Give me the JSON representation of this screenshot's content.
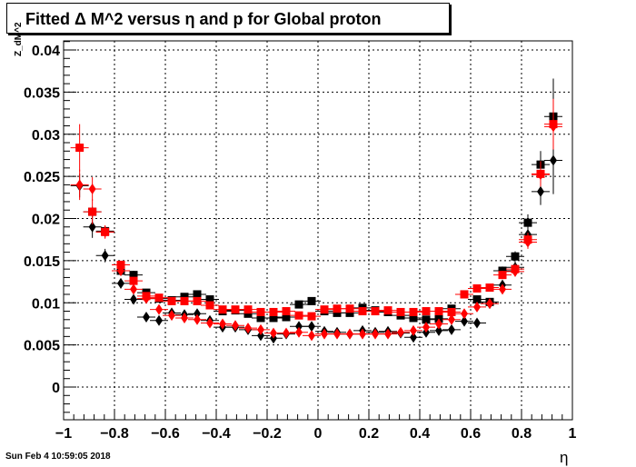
{
  "title": "Fitted Δ M^2 versus η and p for Global proton",
  "timestamp": "Sun Feb  4 10:59:05 2018",
  "chart_data": {
    "type": "scatter",
    "title": "Fitted Δ M^2 versus η and p for Global proton",
    "xlabel": "η",
    "ylabel": "Z_dM^2",
    "xlim": [
      -1,
      1
    ],
    "ylim": [
      -0.0038,
      0.041
    ],
    "x_ticks": [
      -1,
      -0.8,
      -0.6,
      -0.4,
      -0.2,
      0,
      0.2,
      0.4,
      0.6,
      0.8,
      1
    ],
    "x_tick_labels": [
      "−1",
      "−0.8",
      "−0.6",
      "−0.4",
      "−0.2",
      "0",
      "0.2",
      "0.4",
      "0.6",
      "0.8",
      "1"
    ],
    "y_ticks": [
      0,
      0.005,
      0.01,
      0.015,
      0.02,
      0.025,
      0.03,
      0.035,
      0.04
    ],
    "y_tick_labels": [
      "0",
      "0.005",
      "0.01",
      "0.015",
      "0.02",
      "0.025",
      "0.03",
      "0.035",
      "0.04"
    ],
    "grid": true,
    "series": [
      {
        "marker": "square",
        "color": "#000000",
        "points": [
          [
            -0.887,
            0.0208
          ],
          [
            -0.837,
            0.0185
          ],
          [
            -0.775,
            0.0138
          ],
          [
            -0.725,
            0.0133
          ],
          [
            -0.675,
            0.0112
          ],
          [
            -0.625,
            0.0105
          ],
          [
            -0.575,
            0.0103
          ],
          [
            -0.525,
            0.0107
          ],
          [
            -0.475,
            0.011
          ],
          [
            -0.425,
            0.0104
          ],
          [
            -0.375,
            0.009
          ],
          [
            -0.325,
            0.0091
          ],
          [
            -0.275,
            0.0087
          ],
          [
            -0.225,
            0.0082
          ],
          [
            -0.175,
            0.0082
          ],
          [
            -0.125,
            0.0083
          ],
          [
            -0.075,
            0.0098
          ],
          [
            -0.025,
            0.0102
          ],
          [
            0.025,
            0.009
          ],
          [
            0.075,
            0.0088
          ],
          [
            0.125,
            0.0088
          ],
          [
            0.175,
            0.0094
          ],
          [
            0.225,
            0.0091
          ],
          [
            0.275,
            0.0089
          ],
          [
            0.325,
            0.0085
          ],
          [
            0.375,
            0.0082
          ],
          [
            0.425,
            0.008
          ],
          [
            0.475,
            0.0081
          ],
          [
            0.525,
            0.0093
          ],
          [
            0.575,
            0.011
          ],
          [
            0.625,
            0.0104
          ],
          [
            0.675,
            0.0101
          ],
          [
            0.725,
            0.0138
          ],
          [
            0.775,
            0.0155
          ],
          [
            0.825,
            0.0195
          ],
          [
            0.875,
            0.0264
          ],
          [
            0.925,
            0.0321
          ]
        ],
        "errors": [
          0.0006,
          0.0006,
          0.0006,
          0.0005,
          0.0004,
          0.0004,
          0.0004,
          0.0004,
          0.0004,
          0.0004,
          0.0004,
          0.0004,
          0.0004,
          0.0004,
          0.0004,
          0.0004,
          0.0004,
          0.0004,
          0.0004,
          0.0004,
          0.0004,
          0.0004,
          0.0004,
          0.0004,
          0.0004,
          0.0004,
          0.0004,
          0.0004,
          0.0004,
          0.0004,
          0.0004,
          0.0004,
          0.0005,
          0.0006,
          0.001,
          0.0016,
          0.0045
        ]
      },
      {
        "marker": "diamond",
        "color": "#000000",
        "points": [
          [
            -0.937,
            0.0239
          ],
          [
            -0.887,
            0.019
          ],
          [
            -0.837,
            0.0156
          ],
          [
            -0.775,
            0.0123
          ],
          [
            -0.725,
            0.0104
          ],
          [
            -0.675,
            0.0083
          ],
          [
            -0.625,
            0.0079
          ],
          [
            -0.575,
            0.0088
          ],
          [
            -0.525,
            0.0086
          ],
          [
            -0.475,
            0.0087
          ],
          [
            -0.425,
            0.0079
          ],
          [
            -0.375,
            0.0071
          ],
          [
            -0.325,
            0.0071
          ],
          [
            -0.275,
            0.0068
          ],
          [
            -0.225,
            0.0061
          ],
          [
            -0.175,
            0.0058
          ],
          [
            -0.125,
            0.0063
          ],
          [
            -0.075,
            0.0072
          ],
          [
            -0.025,
            0.0072
          ],
          [
            0.025,
            0.0066
          ],
          [
            0.075,
            0.0065
          ],
          [
            0.125,
            0.0063
          ],
          [
            0.175,
            0.0067
          ],
          [
            0.225,
            0.0065
          ],
          [
            0.275,
            0.0066
          ],
          [
            0.325,
            0.0064
          ],
          [
            0.375,
            0.0059
          ],
          [
            0.425,
            0.0065
          ],
          [
            0.475,
            0.0067
          ],
          [
            0.525,
            0.0068
          ],
          [
            0.575,
            0.0078
          ],
          [
            0.625,
            0.0076
          ],
          [
            0.675,
            0.0099
          ],
          [
            0.725,
            0.0121
          ],
          [
            0.775,
            0.0142
          ],
          [
            0.825,
            0.0181
          ],
          [
            0.875,
            0.0232
          ],
          [
            0.925,
            0.0269
          ]
        ],
        "errors": [
          0.0014,
          0.0013,
          0.0008,
          0.0006,
          0.0005,
          0.0005,
          0.0005,
          0.0005,
          0.0005,
          0.0005,
          0.0005,
          0.0005,
          0.0005,
          0.0005,
          0.0005,
          0.0005,
          0.0005,
          0.0005,
          0.0005,
          0.0005,
          0.0005,
          0.0005,
          0.0005,
          0.0005,
          0.0005,
          0.0005,
          0.0005,
          0.0005,
          0.0005,
          0.0005,
          0.0005,
          0.0005,
          0.0005,
          0.0006,
          0.0007,
          0.001,
          0.0016,
          0.004
        ]
      },
      {
        "marker": "square",
        "color": "#ff0000",
        "points": [
          [
            -0.937,
            0.0284
          ],
          [
            -0.887,
            0.0208
          ],
          [
            -0.837,
            0.0184
          ],
          [
            -0.775,
            0.0145
          ],
          [
            -0.725,
            0.0126
          ],
          [
            -0.675,
            0.0108
          ],
          [
            -0.625,
            0.0106
          ],
          [
            -0.575,
            0.0102
          ],
          [
            -0.525,
            0.0102
          ],
          [
            -0.475,
            0.0102
          ],
          [
            -0.425,
            0.0097
          ],
          [
            -0.375,
            0.0092
          ],
          [
            -0.325,
            0.0092
          ],
          [
            -0.275,
            0.0092
          ],
          [
            -0.225,
            0.0089
          ],
          [
            -0.175,
            0.0089
          ],
          [
            -0.125,
            0.009
          ],
          [
            -0.075,
            0.0085
          ],
          [
            -0.025,
            0.0084
          ],
          [
            0.025,
            0.0092
          ],
          [
            0.075,
            0.0093
          ],
          [
            0.125,
            0.0093
          ],
          [
            0.175,
            0.009
          ],
          [
            0.225,
            0.009
          ],
          [
            0.275,
            0.0091
          ],
          [
            0.325,
            0.0089
          ],
          [
            0.375,
            0.0089
          ],
          [
            0.425,
            0.009
          ],
          [
            0.475,
            0.009
          ],
          [
            0.525,
            0.0089
          ],
          [
            0.575,
            0.011
          ],
          [
            0.625,
            0.0117
          ],
          [
            0.675,
            0.0118
          ],
          [
            0.725,
            0.0133
          ],
          [
            0.775,
            0.014
          ],
          [
            0.825,
            0.0175
          ],
          [
            0.875,
            0.0253
          ],
          [
            0.925,
            0.0312
          ]
        ],
        "errors": [
          0.0028,
          0.0015,
          0.0007,
          0.0005,
          0.0004,
          0.0004,
          0.0004,
          0.0004,
          0.0004,
          0.0004,
          0.0004,
          0.0004,
          0.0004,
          0.0004,
          0.0004,
          0.0004,
          0.0004,
          0.0004,
          0.0004,
          0.0004,
          0.0004,
          0.0004,
          0.0004,
          0.0004,
          0.0004,
          0.0004,
          0.0004,
          0.0004,
          0.0004,
          0.0004,
          0.0004,
          0.0004,
          0.0004,
          0.0005,
          0.0006,
          0.0008,
          0.0015,
          0.003
        ]
      },
      {
        "marker": "diamond",
        "color": "#ff0000",
        "points": [
          [
            -0.937,
            0.024
          ],
          [
            -0.887,
            0.0235
          ],
          [
            -0.837,
            0.0184
          ],
          [
            -0.775,
            0.0138
          ],
          [
            -0.725,
            0.0116
          ],
          [
            -0.675,
            0.0105
          ],
          [
            -0.625,
            0.0092
          ],
          [
            -0.575,
            0.0085
          ],
          [
            -0.525,
            0.0082
          ],
          [
            -0.475,
            0.008
          ],
          [
            -0.425,
            0.0076
          ],
          [
            -0.375,
            0.0075
          ],
          [
            -0.325,
            0.0073
          ],
          [
            -0.275,
            0.007
          ],
          [
            -0.225,
            0.0068
          ],
          [
            -0.175,
            0.0064
          ],
          [
            -0.125,
            0.0064
          ],
          [
            -0.075,
            0.0065
          ],
          [
            -0.025,
            0.0061
          ],
          [
            0.025,
            0.0063
          ],
          [
            0.075,
            0.0063
          ],
          [
            0.125,
            0.0063
          ],
          [
            0.175,
            0.0063
          ],
          [
            0.225,
            0.0063
          ],
          [
            0.275,
            0.0063
          ],
          [
            0.325,
            0.0065
          ],
          [
            0.375,
            0.0067
          ],
          [
            0.425,
            0.0071
          ],
          [
            0.475,
            0.0075
          ],
          [
            0.525,
            0.008
          ],
          [
            0.575,
            0.0087
          ],
          [
            0.625,
            0.0095
          ],
          [
            0.675,
            0.0099
          ],
          [
            0.725,
            0.0116
          ],
          [
            0.775,
            0.0137
          ],
          [
            0.825,
            0.0172
          ],
          [
            0.875,
            0.0252
          ],
          [
            0.925,
            0.0309
          ]
        ],
        "errors": [
          0.0018,
          0.0014,
          0.0008,
          0.0005,
          0.0004,
          0.0004,
          0.0004,
          0.0004,
          0.0004,
          0.0004,
          0.0004,
          0.0004,
          0.0004,
          0.0004,
          0.0004,
          0.0004,
          0.0004,
          0.0004,
          0.0004,
          0.0004,
          0.0004,
          0.0004,
          0.0004,
          0.0004,
          0.0004,
          0.0004,
          0.0004,
          0.0004,
          0.0004,
          0.0004,
          0.0004,
          0.0004,
          0.0005,
          0.0005,
          0.0006,
          0.0008,
          0.0014,
          0.0025
        ]
      }
    ]
  }
}
